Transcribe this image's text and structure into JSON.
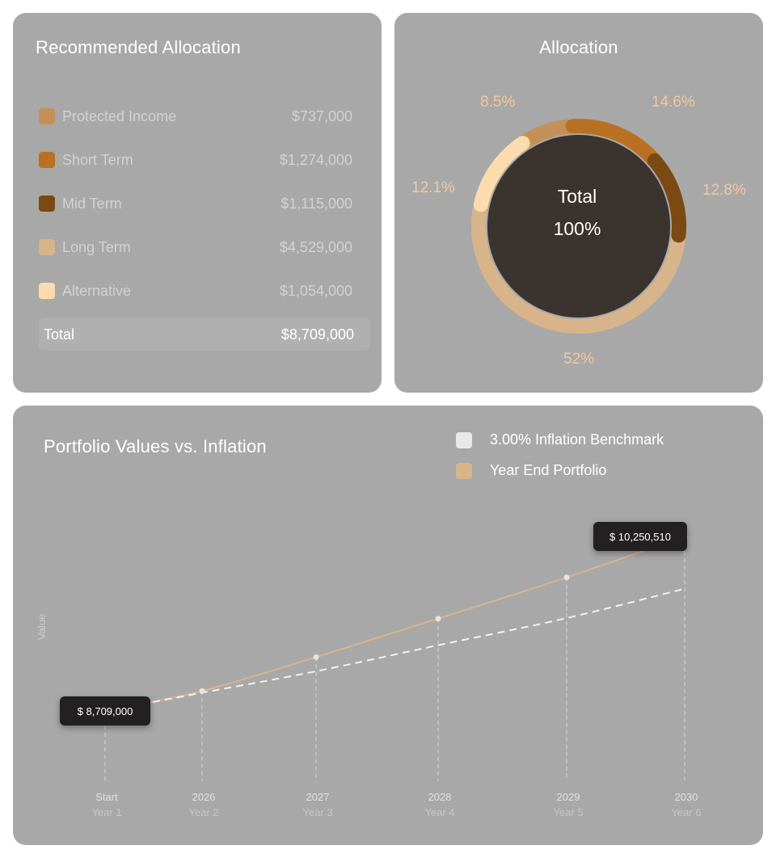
{
  "allocation_card": {
    "title": "Recommended Allocation",
    "items": [
      {
        "label": "Protected Income",
        "value": "$737,000",
        "color": "#c59058"
      },
      {
        "label": "Short Term",
        "value": "$1,274,000",
        "color": "#b97121"
      },
      {
        "label": "Mid Term",
        "value": "$1,115,000",
        "color": "#7b4a12"
      },
      {
        "label": "Long Term",
        "value": "$4,529,000",
        "color": "#d8b48a"
      },
      {
        "label": "Alternative",
        "value": "$1,054,000",
        "color": "#fcdcae"
      }
    ],
    "total": {
      "label": "Total",
      "value": "$8,709,000"
    }
  },
  "donut_card": {
    "title": "Allocation",
    "center_label": "Total",
    "center_value": "100%",
    "slices": [
      {
        "name": "Protected Income",
        "pct_label": "8.5%",
        "value": 8.5,
        "color": "#c59058"
      },
      {
        "name": "Short Term",
        "pct_label": "14.6%",
        "value": 14.6,
        "color": "#b97121"
      },
      {
        "name": "Mid Term",
        "pct_label": "12.8%",
        "value": 12.8,
        "color": "#7b4a12"
      },
      {
        "name": "Long Term",
        "pct_label": "52%",
        "value": 52,
        "color": "#d8b48a"
      },
      {
        "name": "Alternative",
        "pct_label": "12.1%",
        "value": 12.1,
        "color": "#fcdcae"
      }
    ]
  },
  "chart_card": {
    "title": "Portfolio Values vs. Inflation",
    "legend": [
      {
        "label": "3.00% Inflation Benchmark",
        "color": "#e8e8e8"
      },
      {
        "label": "Year End Portfolio",
        "color": "#d8b48a"
      }
    ],
    "y_axis_label": "Value",
    "start_tooltip": "$ 8,709,000",
    "end_tooltip": "$ 10,250,510"
  },
  "chart_data": {
    "type": "line",
    "title": "Portfolio Values vs. Inflation",
    "xlabel": "",
    "ylabel": "Value",
    "x": [
      {
        "top": "Start",
        "bottom": "Year 1"
      },
      {
        "top": "2026",
        "bottom": "Year 2"
      },
      {
        "top": "2027",
        "bottom": "Year 3"
      },
      {
        "top": "2028",
        "bottom": "Year 4"
      },
      {
        "top": "2029",
        "bottom": "Year 5"
      },
      {
        "top": "2030",
        "bottom": "Year 6"
      }
    ],
    "ylim": [
      8000000,
      10500000
    ],
    "series": [
      {
        "name": "Year End Portfolio",
        "color": "#d8b48a",
        "style": "solid",
        "values": [
          8709000,
          8886000,
          9185000,
          9525000,
          9890000,
          10250510
        ]
      },
      {
        "name": "3.00% Inflation Benchmark",
        "color": "#f2f2f2",
        "style": "dashed",
        "values": [
          8709000,
          8870000,
          9060000,
          9290000,
          9530000,
          9790000
        ]
      }
    ]
  }
}
